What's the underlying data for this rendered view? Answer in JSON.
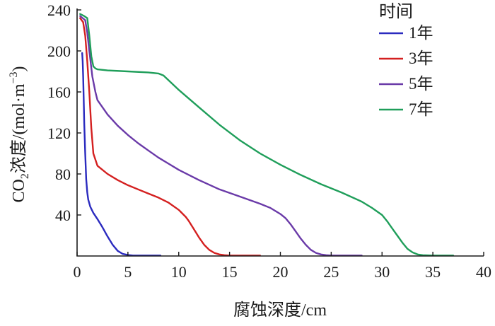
{
  "chart_data": {
    "type": "line",
    "xlabel": "腐蚀深度/cm",
    "ylabel": {
      "prefix": "CO",
      "sub": "2",
      "mid": "浓度/(mol·m",
      "sup": "−3",
      "suffix": ")"
    },
    "xlim": [
      0,
      40
    ],
    "ylim": [
      0,
      240
    ],
    "x_ticks": [
      0,
      5,
      10,
      15,
      20,
      25,
      30,
      35,
      40
    ],
    "y_ticks": [
      40,
      80,
      120,
      160,
      200,
      240
    ],
    "grid": false,
    "legend_title": "时间",
    "legend_position": "top-right",
    "series": [
      {
        "name": "1年",
        "color": "#2b2bbf",
        "x": [
          0.5,
          0.55,
          0.6,
          0.65,
          0.7,
          0.8,
          0.9,
          1.0,
          1.1,
          1.3,
          1.6,
          2.0,
          2.5,
          3.0,
          3.5,
          4.0,
          4.5,
          5.0,
          5.5,
          6.0,
          7.0,
          8.2
        ],
        "y": [
          198,
          190,
          175,
          155,
          130,
          100,
          75,
          62,
          55,
          48,
          42,
          36,
          28,
          19,
          11,
          5,
          2,
          1,
          0.5,
          0.5,
          0.5,
          0.5
        ]
      },
      {
        "name": "3年",
        "color": "#d42020",
        "x": [
          0.3,
          0.6,
          0.8,
          1.0,
          1.2,
          1.4,
          1.6,
          2.0,
          3.0,
          4.0,
          5.0,
          6.0,
          7.0,
          8.0,
          9.0,
          10.0,
          10.7,
          11.0,
          11.5,
          12.0,
          12.5,
          13.0,
          13.5,
          14.0,
          14.5,
          15.0,
          16.0,
          18.0
        ],
        "y": [
          232,
          228,
          215,
          190,
          160,
          125,
          100,
          88,
          80,
          74,
          69,
          65,
          61,
          57,
          52,
          45,
          38,
          34,
          26,
          18,
          11,
          6,
          3,
          1.5,
          0.8,
          0.5,
          0.5,
          0.5
        ]
      },
      {
        "name": "5年",
        "color": "#6a3aa8",
        "x": [
          0.3,
          0.8,
          1.0,
          1.2,
          1.5,
          1.8,
          2.0,
          3.0,
          4.0,
          5.0,
          6.0,
          7.0,
          8.0,
          9.0,
          10.0,
          12.0,
          14.0,
          16.0,
          18.0,
          19.0,
          20.0,
          20.5,
          21.0,
          21.5,
          22.0,
          22.5,
          23.0,
          23.5,
          24.0,
          24.5,
          25.0,
          26.0,
          28.0
        ],
        "y": [
          234,
          230,
          218,
          200,
          175,
          160,
          152,
          138,
          127,
          118,
          110,
          103,
          96,
          90,
          84,
          74,
          65,
          58,
          51,
          47,
          41,
          37,
          31,
          24,
          17,
          11,
          6,
          3,
          1.5,
          0.8,
          0.5,
          0.5,
          0.5
        ]
      },
      {
        "name": "7年",
        "color": "#1f9e5a",
        "x": [
          0.3,
          0.7,
          1.0,
          1.2,
          1.4,
          1.6,
          1.8,
          2.0,
          3.0,
          5.0,
          7.0,
          8.0,
          8.5,
          10.0,
          12.0,
          14.0,
          16.0,
          18.0,
          20.0,
          22.0,
          24.0,
          26.0,
          28.0,
          29.0,
          30.0,
          30.5,
          31.0,
          31.5,
          32.0,
          32.5,
          33.0,
          33.5,
          34.0,
          35.0,
          37.0
        ],
        "y": [
          236,
          234,
          232,
          215,
          195,
          185,
          183,
          182,
          181,
          180,
          179,
          178,
          176,
          162,
          145,
          128,
          113,
          100,
          89,
          79,
          70,
          62,
          53,
          47,
          40,
          34,
          27,
          20,
          13,
          7,
          3.5,
          1.5,
          0.8,
          0.5,
          0.5
        ]
      }
    ]
  }
}
